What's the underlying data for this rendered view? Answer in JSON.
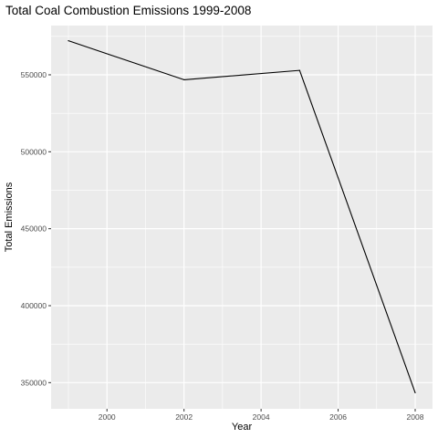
{
  "chart_data": {
    "type": "line",
    "title": "Total Coal Combustion Emissions 1999-2008",
    "xlabel": "Year",
    "ylabel": "Total Emissions",
    "x": [
      1999,
      2002,
      2005,
      2008
    ],
    "series": [
      {
        "values": [
          572126,
          546789,
          552881,
          343432
        ]
      }
    ],
    "xlim": [
      1998.55,
      2008.45
    ],
    "ylim": [
      333000,
      582000
    ],
    "x_ticks": [
      2000,
      2002,
      2004,
      2006,
      2008
    ],
    "x_tick_labels": [
      "2000",
      "2002",
      "2004",
      "2006",
      "2008"
    ],
    "y_ticks": [
      350000,
      400000,
      450000,
      500000,
      550000
    ],
    "y_tick_labels": [
      "350000",
      "400000",
      "450000",
      "500000",
      "550000"
    ],
    "grid": true,
    "colors": {
      "panel": "#ebebeb",
      "grid_major": "#ffffff",
      "line": "#000000",
      "tick": "#333333",
      "tick_label": "#4d4d4d"
    }
  }
}
